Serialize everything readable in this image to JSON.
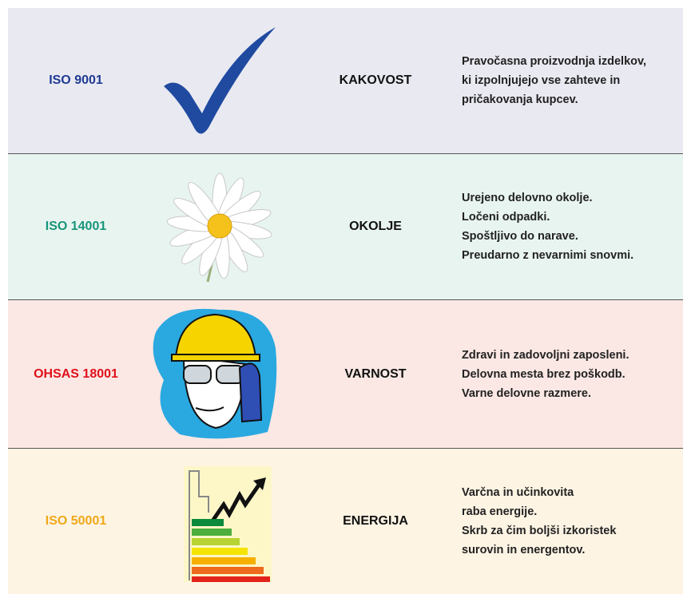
{
  "rows": [
    {
      "standard": "ISO 9001",
      "category": "KAKOVOST",
      "description": [
        "Pravočasna proizvodnja izdelkov,",
        "ki izpolnjujejo vse zahteve in",
        "pričakovanja kupcev."
      ]
    },
    {
      "standard": "ISO 14001",
      "category": "OKOLJE",
      "description": [
        "Urejeno delovno okolje.",
        "Ločeni odpadki.",
        "Spoštljivo do narave.",
        "Preudarno z nevarnimi snovmi."
      ]
    },
    {
      "standard": "OHSAS 18001",
      "category": "VARNOST",
      "description": [
        "Zdravi in zadovoljni zaposleni.",
        "Delovna mesta brez poškodb.",
        "Varne delovne razmere."
      ]
    },
    {
      "standard": "ISO 50001",
      "category": "ENERGIJA",
      "description": [
        "Varčna in učinkovita",
        "raba energije.",
        "Skrb za čim boljši izkoristek",
        "surovin in energentov."
      ]
    }
  ]
}
